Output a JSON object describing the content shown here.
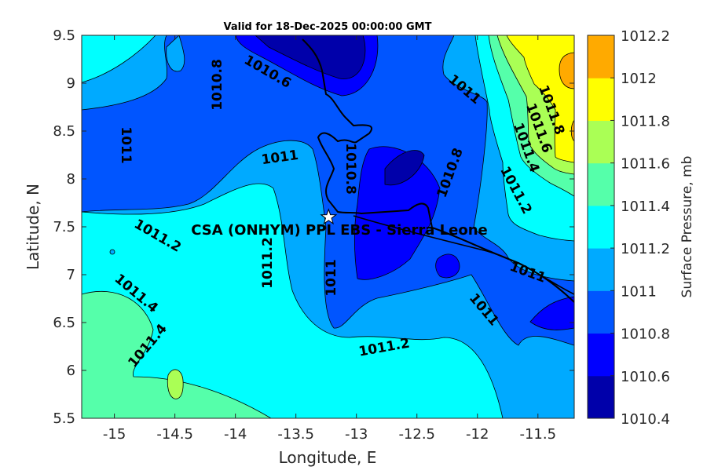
{
  "chart_data": {
    "type": "heatmap",
    "subtype": "filled-contour-map",
    "title": "Valid for 18-Dec-2025 00:00:00 GMT",
    "xlabel": "Longitude, E",
    "ylabel": "Latitude, N",
    "xlim": [
      -15.27,
      -11.2
    ],
    "ylim": [
      5.5,
      9.5
    ],
    "xticks": [
      -15,
      -14.5,
      -14,
      -13.5,
      -13,
      -12.5,
      -12,
      -11.5
    ],
    "yticks": [
      5.5,
      6,
      6.5,
      7,
      7.5,
      8,
      8.5,
      9,
      9.5
    ],
    "colorbar": {
      "label": "Surface Pressure, mb",
      "levels": [
        1010.4,
        1010.6,
        1010.8,
        1011,
        1011.2,
        1011.4,
        1011.6,
        1011.8,
        1012,
        1012.2
      ],
      "colors": [
        "#0000aa",
        "#0000ff",
        "#0055ff",
        "#00aaff",
        "#00ffff",
        "#55ffaa",
        "#aaff55",
        "#ffff00",
        "#ffaa00",
        "#ff5500"
      ]
    },
    "station": {
      "name": "CSA (ONHYM) PPL EBS  - Sierra Leone",
      "lon": -13.23,
      "lat": 7.6
    },
    "contour_labels": [
      "1010.8",
      "1010.6",
      "1011",
      "1011.8",
      "1011.6",
      "1011.4",
      "1011",
      "1011",
      "1010.8",
      "1010.8",
      "1011.2",
      "1011.2",
      "1011.2",
      "1011",
      "1011",
      "1011.4",
      "1011.4",
      "1011",
      "1011.2"
    ]
  }
}
